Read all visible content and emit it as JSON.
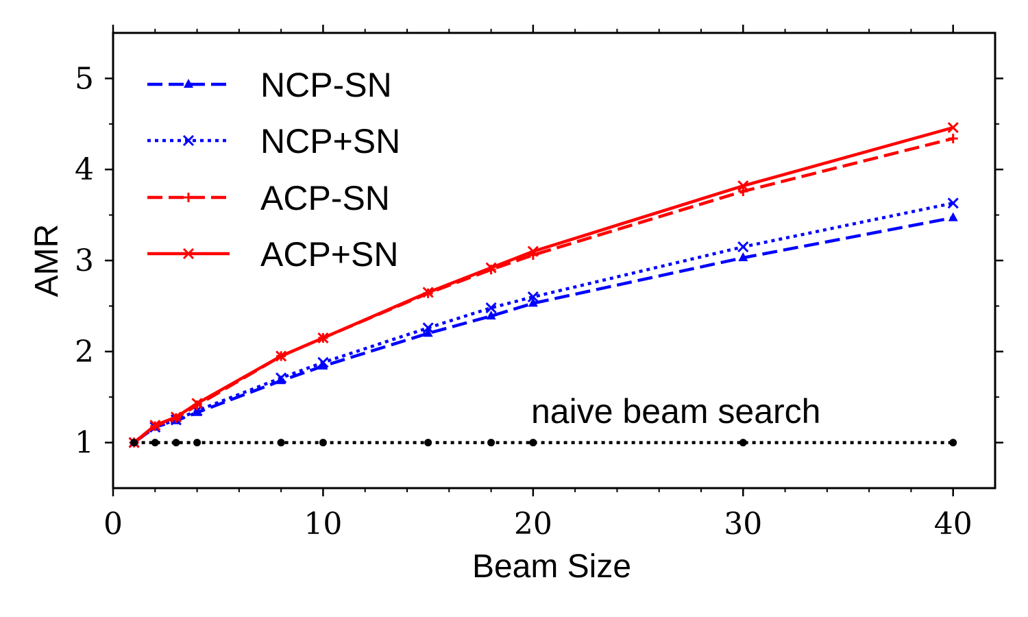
{
  "chart_data": {
    "type": "line",
    "xlabel": "Beam Size",
    "ylabel": "AMR",
    "xlim": [
      0,
      42
    ],
    "ylim": [
      0.5,
      5.5
    ],
    "xticks": [
      0,
      10,
      20,
      30,
      40
    ],
    "yticks": [
      1,
      2,
      3,
      4,
      5
    ],
    "legend_position": "upper-left",
    "annotation": "naive beam search",
    "series": [
      {
        "name": "NCP-SN",
        "color": "#0000ff",
        "style": "dashed",
        "marker": "triangle",
        "x": [
          1,
          2,
          3,
          4,
          8,
          10,
          15,
          18,
          20,
          30,
          40
        ],
        "y": [
          1.0,
          1.17,
          1.24,
          1.33,
          1.68,
          1.84,
          2.2,
          2.39,
          2.53,
          3.03,
          3.47
        ]
      },
      {
        "name": "NCP+SN",
        "color": "#0000ff",
        "style": "dotted",
        "marker": "x",
        "x": [
          1,
          2,
          3,
          4,
          8,
          10,
          15,
          18,
          20,
          30,
          40
        ],
        "y": [
          1.0,
          1.17,
          1.25,
          1.35,
          1.71,
          1.88,
          2.26,
          2.48,
          2.6,
          3.15,
          3.63
        ]
      },
      {
        "name": "ACP-SN",
        "color": "#ff0000",
        "style": "dashed",
        "marker": "plus",
        "x": [
          1,
          2,
          3,
          4,
          8,
          10,
          15,
          18,
          20,
          30,
          40
        ],
        "y": [
          1.0,
          1.18,
          1.27,
          1.41,
          1.95,
          2.15,
          2.64,
          2.9,
          3.06,
          3.76,
          4.34
        ]
      },
      {
        "name": "ACP+SN",
        "color": "#ff0000",
        "style": "solid",
        "marker": "x",
        "x": [
          1,
          2,
          3,
          4,
          8,
          10,
          15,
          18,
          20,
          30,
          40
        ],
        "y": [
          1.0,
          1.19,
          1.28,
          1.43,
          1.95,
          2.15,
          2.65,
          2.92,
          3.1,
          3.82,
          4.46
        ]
      },
      {
        "name": "",
        "color": "#000000",
        "style": "dotted",
        "marker": "dot",
        "x": [
          1,
          2,
          3,
          4,
          8,
          10,
          15,
          18,
          20,
          30,
          40
        ],
        "y": [
          1,
          1,
          1,
          1,
          1,
          1,
          1,
          1,
          1,
          1,
          1
        ]
      }
    ]
  }
}
